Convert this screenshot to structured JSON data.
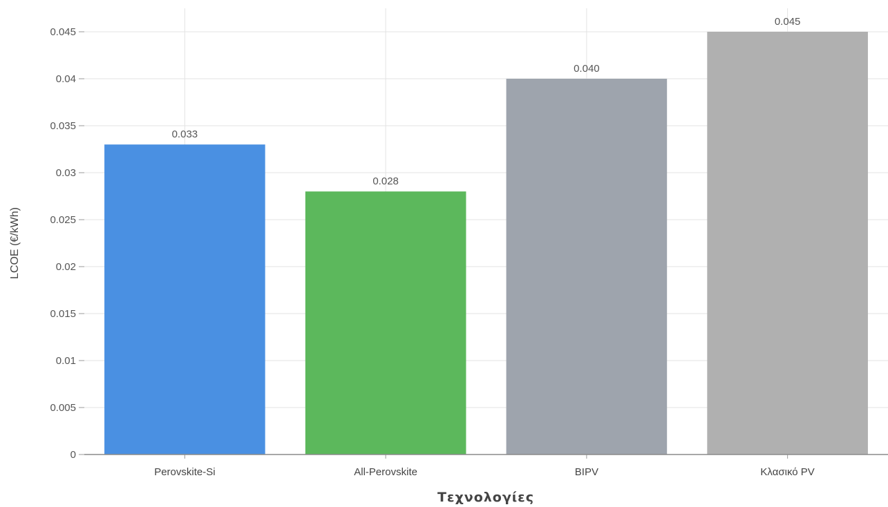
{
  "chart_data": {
    "type": "bar",
    "title": "",
    "xlabel": "Τεχνολογίες",
    "ylabel": "LCOE (€/kWh)",
    "categories": [
      "Perovskite-Si",
      "All-Perovskite",
      "BIPV",
      "Κλασικό PV"
    ],
    "values": [
      0.033,
      0.028,
      0.04,
      0.045
    ],
    "value_labels": [
      "0.033",
      "0.028",
      "0.040",
      "0.045"
    ],
    "colors": [
      "#4a90e2",
      "#5cb85c",
      "#9ea4ad",
      "#b0b0b0"
    ],
    "ylim": [
      0,
      0.045
    ],
    "yticks": [
      0,
      0.005,
      0.01,
      0.015,
      0.02,
      0.025,
      0.03,
      0.035,
      0.04,
      0.045
    ],
    "ytick_labels": [
      "0",
      "0.005",
      "0.01",
      "0.015",
      "0.02",
      "0.025",
      "0.03",
      "0.035",
      "0.04",
      "0.045"
    ],
    "grid": true,
    "legend": "none"
  }
}
